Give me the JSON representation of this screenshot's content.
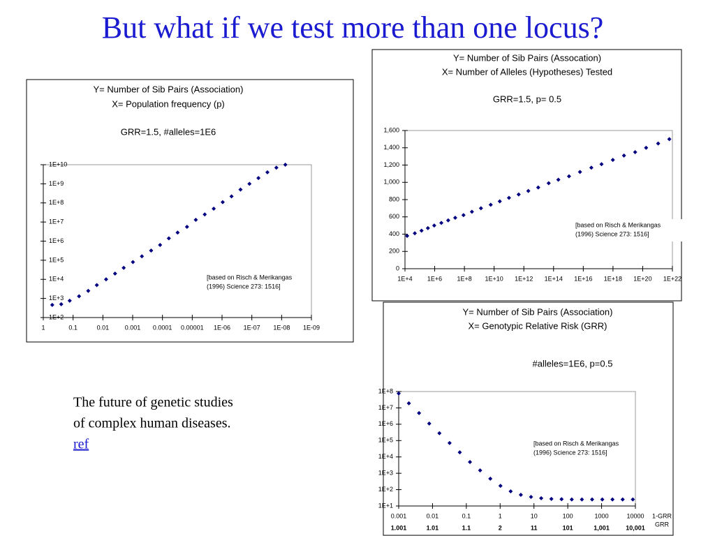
{
  "title": "But what if we test more than one locus?",
  "text": [
    "The future of genetic studies",
    "of complex human diseases."
  ],
  "link": "ref",
  "chart_data": [
    {
      "type": "scatter",
      "title": [
        "Y= Number of Sib Pairs (Association)",
        "X= Population frequency (p)",
        "GRR=1.5, #alleles=1E6"
      ],
      "annotation": [
        "[based on Risch & Merikangas",
        "(1996) Science 273: 1516]"
      ],
      "x": [
        0.5,
        0.25,
        0.13,
        0.063,
        0.031,
        0.016,
        0.0078,
        0.0039,
        0.002,
        0.00098,
        0.00049,
        0.00024,
        0.00012,
        6.1e-05,
        3.1e-05,
        1.5e-05,
        7.6e-06,
        3.8e-06,
        1.9e-06,
        9.5e-07,
        4.8e-07,
        2.4e-07,
        1.2e-07,
        6e-08,
        3e-08,
        1.5e-08,
        7.5e-09
      ],
      "values": [
        460,
        500,
        760,
        1300,
        2500,
        5000,
        10000,
        20000,
        40000,
        80000,
        160000,
        320000,
        630000,
        1400000,
        2800000,
        5600000,
        13000000,
        25000000,
        50000000,
        110000000,
        220000000,
        500000000,
        1000000000,
        2000000000,
        4000000000,
        7000000000,
        10000000000
      ],
      "color": "#000080",
      "xscale": "log",
      "yscale": "log",
      "xlim": [
        1,
        1e-09
      ],
      "ylim": [
        100,
        10000000000.0
      ],
      "xticks": [
        1,
        0.1,
        0.01,
        0.001,
        0.0001,
        1e-05,
        {
          "value": 1e-06,
          "label": "1E-06"
        },
        {
          "value": 1e-07,
          "label": "1E-07"
        },
        {
          "value": 1e-08,
          "label": "1E-08"
        },
        {
          "value": 1e-09,
          "label": "1E-09"
        }
      ],
      "yticks": [
        {
          "value": 100,
          "label": "1E+2"
        },
        {
          "value": 1000,
          "label": "1E+3"
        },
        {
          "value": 10000,
          "label": "1E+4"
        },
        {
          "value": 100000,
          "label": "1E+5"
        },
        {
          "value": 1000000,
          "label": "1E+6"
        },
        {
          "value": 10000000,
          "label": "1E+7"
        },
        {
          "value": 100000000,
          "label": "1E+8"
        },
        {
          "value": 1000000000,
          "label": "1E+9"
        },
        {
          "value": 10000000000,
          "label": "1E+10"
        }
      ]
    },
    {
      "type": "scatter",
      "title": [
        "Y= Number of Sib Pairs (Assocation)",
        "X= Number of Alleles (Hypotheses) Tested",
        "GRR=1.5,  p= 0.5"
      ],
      "annotation": [
        "[based on Risch & Merikangas",
        "(1996) Science 273: 1516]"
      ],
      "x": [
        14000.0,
        46000.0,
        130000.0,
        350000.0,
        930000.0,
        2800000.0,
        8100000.0,
        24000000.0,
        87000000.0,
        320000000.0,
        1300000000.0,
        5900000000.0,
        24000000000.0,
        100000000000.0,
        450000000000.0,
        2000000000000.0,
        9300000000000.0,
        47000000000000.0,
        210000000000000.0,
        1100000000000000.0,
        6000000000000000.0,
        3.5e+16,
        1.7e+17,
        9.8e+17,
        5.5e+18,
        3.1e+19,
        1.7e+20,
        1.1e+21,
        6.2e+21
      ],
      "values": [
        380,
        410,
        440,
        470,
        500,
        530,
        560,
        590,
        620,
        660,
        700,
        740,
        780,
        820,
        860,
        900,
        940,
        990,
        1030,
        1070,
        1120,
        1170,
        1210,
        1260,
        1310,
        1350,
        1400,
        1450,
        1500
      ],
      "color": "#000080",
      "xscale": "log",
      "yscale": "linear",
      "xlim": [
        10000.0,
        1e+22
      ],
      "ylim": [
        0,
        1600
      ],
      "xticks": [
        {
          "value": 10000.0,
          "label": "1E+4"
        },
        {
          "value": 1000000.0,
          "label": "1E+6"
        },
        {
          "value": 100000000.0,
          "label": "1E+8"
        },
        {
          "value": 10000000000.0,
          "label": "1E+10"
        },
        {
          "value": 1000000000000.0,
          "label": "1E+12"
        },
        {
          "value": 100000000000000.0,
          "label": "1E+14"
        },
        {
          "value": 1e+16,
          "label": "1E+16"
        },
        {
          "value": 1e+18,
          "label": "1E+18"
        },
        {
          "value": 1e+20,
          "label": "1E+20"
        },
        {
          "value": 1e+22,
          "label": "1E+22"
        }
      ],
      "yticks": [
        0,
        200,
        400,
        600,
        800,
        {
          "value": 1000,
          "label": "1,000"
        },
        {
          "value": 1200,
          "label": "1,200"
        },
        {
          "value": 1400,
          "label": "1,400"
        },
        {
          "value": 1600,
          "label": "1,600"
        }
      ]
    },
    {
      "type": "scatter",
      "title": [
        "Y= Number of Sib Pairs (Association)",
        "X= Genotypic Relative Risk (GRR)",
        "#alleles=1E6, p=0.5"
      ],
      "annotation": [
        "[based on Risch & Merikangas",
        "(1996) Science 273: 1516]"
      ],
      "x_label": "1-GRR",
      "x2_label": "GRR",
      "grr_labels": [
        "1.001",
        "1.01",
        "1.1",
        "2",
        "11",
        "101",
        "1,001",
        "10,001"
      ],
      "x": [
        0.001,
        0.002,
        0.004,
        0.008,
        0.016,
        0.032,
        0.064,
        0.128,
        0.256,
        0.512,
        1.024,
        2.048,
        4.096,
        8.192,
        16.384,
        32.768,
        65.536,
        131.072,
        262.144,
        524.288,
        1048.576,
        2097.152,
        4194.304,
        8388.608
      ],
      "values": [
        76000000,
        19000000,
        4800000,
        1100000,
        280000,
        71000,
        19000,
        4900,
        1500,
        470,
        170,
        79,
        48,
        36,
        30,
        27,
        26,
        25,
        25,
        25,
        25,
        25,
        25,
        25
      ],
      "color": "#000080",
      "xscale": "log",
      "yscale": "log",
      "xlim": [
        0.001,
        10000
      ],
      "ylim": [
        10,
        100000000
      ],
      "xticks": [
        0.001,
        0.01,
        0.1,
        1,
        10,
        100,
        1000,
        10000
      ],
      "yticks": [
        {
          "value": 10,
          "label": "1E+1"
        },
        {
          "value": 100,
          "label": "1E+2"
        },
        {
          "value": 1000,
          "label": "1E+3"
        },
        {
          "value": 10000,
          "label": "1E+4"
        },
        {
          "value": 100000,
          "label": "1E+5"
        },
        {
          "value": 1000000,
          "label": "1E+6"
        },
        {
          "value": 10000000,
          "label": "1E+7"
        },
        {
          "value": 100000000,
          "label": "1E+8"
        }
      ]
    }
  ]
}
